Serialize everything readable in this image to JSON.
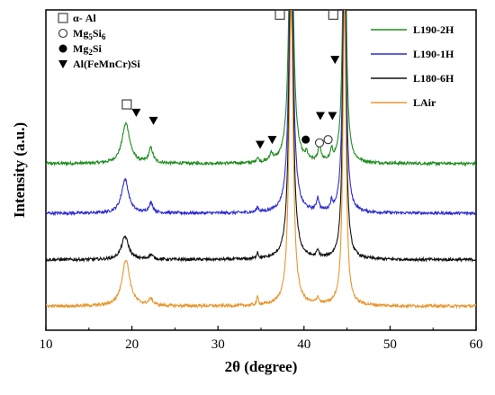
{
  "chart_data": {
    "type": "line",
    "xlabel": "2θ (degree)",
    "ylabel": "Intensity (a.u.)",
    "xlim": [
      10,
      60
    ],
    "xticks": [
      10,
      20,
      30,
      40,
      50,
      60
    ],
    "yticks_shown": false,
    "grid": false,
    "legend_position": "top-right",
    "series": [
      {
        "name": "L190-2H",
        "color": "#1e8c1e",
        "baseline": 5.2,
        "peaks": [
          {
            "x": 19.3,
            "h": 1.25,
            "w": 0.55
          },
          {
            "x": 22.2,
            "h": 0.45,
            "w": 0.3
          },
          {
            "x": 34.6,
            "h": 0.15,
            "w": 0.15
          },
          {
            "x": 36.2,
            "h": 0.25,
            "w": 0.2
          },
          {
            "x": 38.5,
            "h": 9.5,
            "w": 0.28
          },
          {
            "x": 40.3,
            "h": 0.2,
            "w": 0.15
          },
          {
            "x": 41.8,
            "h": 0.55,
            "w": 0.18
          },
          {
            "x": 43.2,
            "h": 0.3,
            "w": 0.15
          },
          {
            "x": 44.7,
            "h": 9.5,
            "w": 0.22
          }
        ]
      },
      {
        "name": "L190-1H",
        "color": "#2d2dd0",
        "baseline": 3.65,
        "peaks": [
          {
            "x": 19.2,
            "h": 1.05,
            "w": 0.5
          },
          {
            "x": 22.2,
            "h": 0.3,
            "w": 0.3
          },
          {
            "x": 34.6,
            "h": 0.15,
            "w": 0.15
          },
          {
            "x": 38.5,
            "h": 9.5,
            "w": 0.28
          },
          {
            "x": 41.6,
            "h": 0.4,
            "w": 0.18
          },
          {
            "x": 43.2,
            "h": 0.25,
            "w": 0.15
          },
          {
            "x": 44.7,
            "h": 9.5,
            "w": 0.22
          }
        ]
      },
      {
        "name": "L180-6H",
        "color": "#111111",
        "baseline": 2.2,
        "peaks": [
          {
            "x": 19.2,
            "h": 0.72,
            "w": 0.5
          },
          {
            "x": 22.2,
            "h": 0.15,
            "w": 0.3
          },
          {
            "x": 34.6,
            "h": 0.2,
            "w": 0.12
          },
          {
            "x": 38.5,
            "h": 9.5,
            "w": 0.28
          },
          {
            "x": 41.6,
            "h": 0.2,
            "w": 0.18
          },
          {
            "x": 44.7,
            "h": 9.5,
            "w": 0.22
          }
        ]
      },
      {
        "name": "LAir",
        "color": "#e8962e",
        "baseline": 0.75,
        "peaks": [
          {
            "x": 19.3,
            "h": 1.45,
            "w": 0.55
          },
          {
            "x": 22.2,
            "h": 0.2,
            "w": 0.3
          },
          {
            "x": 34.6,
            "h": 0.25,
            "w": 0.12
          },
          {
            "x": 38.5,
            "h": 9.5,
            "w": 0.28
          },
          {
            "x": 41.6,
            "h": 0.2,
            "w": 0.18
          },
          {
            "x": 44.7,
            "h": 9.5,
            "w": 0.22
          }
        ]
      }
    ],
    "phase_legend": [
      {
        "symbol": "open-square",
        "label": "α- Al"
      },
      {
        "symbol": "open-circle",
        "label": "Mg5Si6",
        "base": "Mg",
        "sub1": "5",
        "mid": "Si",
        "sub2": "6"
      },
      {
        "symbol": "filled-circle",
        "label": "Mg2Si",
        "base": "Mg",
        "sub1": "2",
        "mid": "Si",
        "sub2": ""
      },
      {
        "symbol": "filled-triangle",
        "label": "Al(FeMnCr)Si"
      }
    ],
    "annotations": [
      {
        "symbol": "open-square",
        "x": 19.4,
        "level": 7.05
      },
      {
        "symbol": "open-square",
        "x": 37.2,
        "level": 9.85
      },
      {
        "symbol": "open-square",
        "x": 43.4,
        "level": 9.85
      },
      {
        "symbol": "filled-triangle",
        "x": 20.5,
        "level": 6.8
      },
      {
        "symbol": "filled-triangle",
        "x": 22.5,
        "level": 6.55
      },
      {
        "symbol": "filled-triangle",
        "x": 34.9,
        "level": 5.8
      },
      {
        "symbol": "filled-triangle",
        "x": 36.3,
        "level": 5.95
      },
      {
        "symbol": "filled-triangle",
        "x": 41.9,
        "level": 6.7
      },
      {
        "symbol": "filled-triangle",
        "x": 43.3,
        "level": 6.7
      },
      {
        "symbol": "filled-triangle",
        "x": 43.6,
        "level": 8.45
      },
      {
        "symbol": "filled-circle",
        "x": 40.2,
        "level": 5.95
      },
      {
        "symbol": "open-circle",
        "x": 41.8,
        "level": 5.85
      },
      {
        "symbol": "open-circle",
        "x": 42.8,
        "level": 5.95
      }
    ]
  }
}
